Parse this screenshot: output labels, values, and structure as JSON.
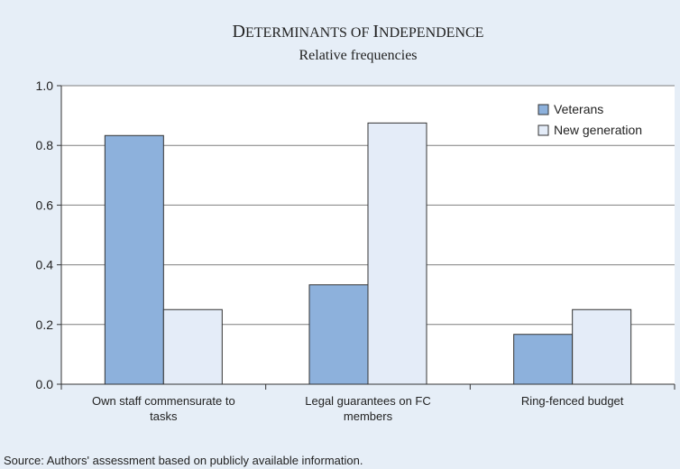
{
  "chart_data": {
    "type": "bar",
    "title_first": "D",
    "title_rest_1": "ETERMINANTS OF ",
    "title_second": "I",
    "title_rest_2": "NDEPENDENCE",
    "subtitle": "Relative frequencies",
    "categories": [
      [
        "Own staff commensurate to",
        "tasks"
      ],
      [
        "Legal guarantees on FC",
        "members"
      ],
      [
        "Ring-fenced budget"
      ]
    ],
    "series": [
      {
        "name": "Veterans",
        "values": [
          0.833,
          0.333,
          0.167
        ],
        "color": "#8db1dc"
      },
      {
        "name": "New generation",
        "values": [
          0.25,
          0.875,
          0.25
        ],
        "color": "#e4ecf8"
      }
    ],
    "yticks": [
      "0.0",
      "0.2",
      "0.4",
      "0.6",
      "0.8",
      "1.0"
    ],
    "ylim": [
      0,
      1
    ],
    "grid": true,
    "legend": "top-right",
    "source": "Source: Authors' assessment based on publicly available information."
  }
}
